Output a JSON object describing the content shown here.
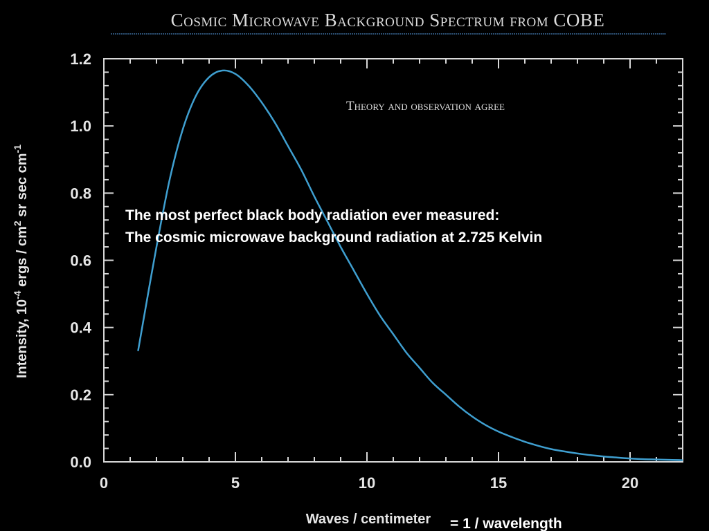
{
  "chart_data": {
    "type": "line",
    "title": "Cosmic Microwave Background Spectrum from COBE",
    "subtitle": "Theory and observation agree",
    "xlabel": "Waves / centimeter",
    "xlabel_extension": "= 1 / wavelength",
    "ylabel": "Intensity, 10",
    "ylabel_exp1": "-4",
    "ylabel_mid": " ergs / cm",
    "ylabel_exp2": "2",
    "ylabel_end": " sr sec cm",
    "ylabel_exp3": "-1",
    "xlim": [
      0,
      22
    ],
    "ylim": [
      0,
      1.2
    ],
    "x_ticks": [
      0,
      5,
      10,
      15,
      20
    ],
    "x_tick_labels": [
      "0",
      "5",
      "10",
      "15",
      "20"
    ],
    "y_ticks": [
      0.0,
      0.2,
      0.4,
      0.6,
      0.8,
      1.0,
      1.2
    ],
    "y_tick_labels": [
      "0.0",
      "0.2",
      "0.4",
      "0.6",
      "0.8",
      "1.0",
      "1.2"
    ],
    "grid": false,
    "series": [
      {
        "color": "#3f9fd0",
        "x": [
          1.3,
          1.5,
          2.0,
          2.5,
          3.0,
          3.5,
          4.0,
          4.5,
          5.0,
          5.5,
          6.0,
          6.5,
          7.0,
          7.5,
          8.0,
          8.5,
          9.0,
          9.5,
          10.0,
          10.5,
          11.0,
          11.5,
          12.0,
          12.5,
          13.0,
          13.5,
          14.0,
          14.5,
          15.0,
          15.5,
          16.0,
          16.5,
          17.0,
          17.5,
          18.0,
          18.5,
          19.0,
          19.5,
          20.0,
          20.5,
          21.0,
          21.5,
          22.0
        ],
        "y": [
          0.33,
          0.42,
          0.64,
          0.84,
          0.99,
          1.09,
          1.145,
          1.165,
          1.155,
          1.12,
          1.07,
          1.01,
          0.94,
          0.87,
          0.79,
          0.715,
          0.64,
          0.57,
          0.5,
          0.435,
          0.38,
          0.325,
          0.28,
          0.235,
          0.2,
          0.165,
          0.135,
          0.11,
          0.09,
          0.074,
          0.06,
          0.048,
          0.038,
          0.031,
          0.025,
          0.02,
          0.016,
          0.013,
          0.01,
          0.008,
          0.007,
          0.006,
          0.005
        ]
      }
    ],
    "annotations": [
      "The most perfect black body radiation ever measured:",
      "The cosmic microwave background radiation at 2.725 Kelvin"
    ]
  }
}
